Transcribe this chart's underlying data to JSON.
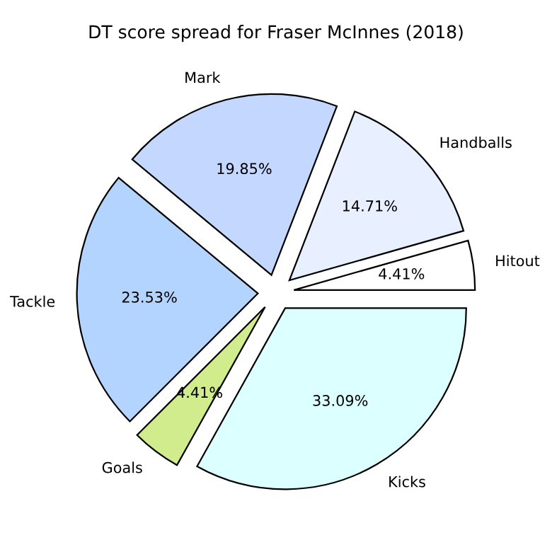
{
  "chart_data": {
    "type": "pie",
    "title": "DT score spread for Fraser McInnes (2018)",
    "categories": [
      "Hitout",
      "Handballs",
      "Mark",
      "Tackle",
      "Goals",
      "Kicks"
    ],
    "values": [
      4.41,
      14.71,
      19.85,
      23.53,
      4.41,
      33.09
    ],
    "value_labels": [
      "4.41%",
      "14.71%",
      "19.85%",
      "23.53%",
      "4.41%",
      "33.09%"
    ],
    "colors": [
      "#ffffff",
      "#e8f0ff",
      "#c4d8ff",
      "#b3d4ff",
      "#d0ec8c",
      "#dcffff"
    ]
  }
}
